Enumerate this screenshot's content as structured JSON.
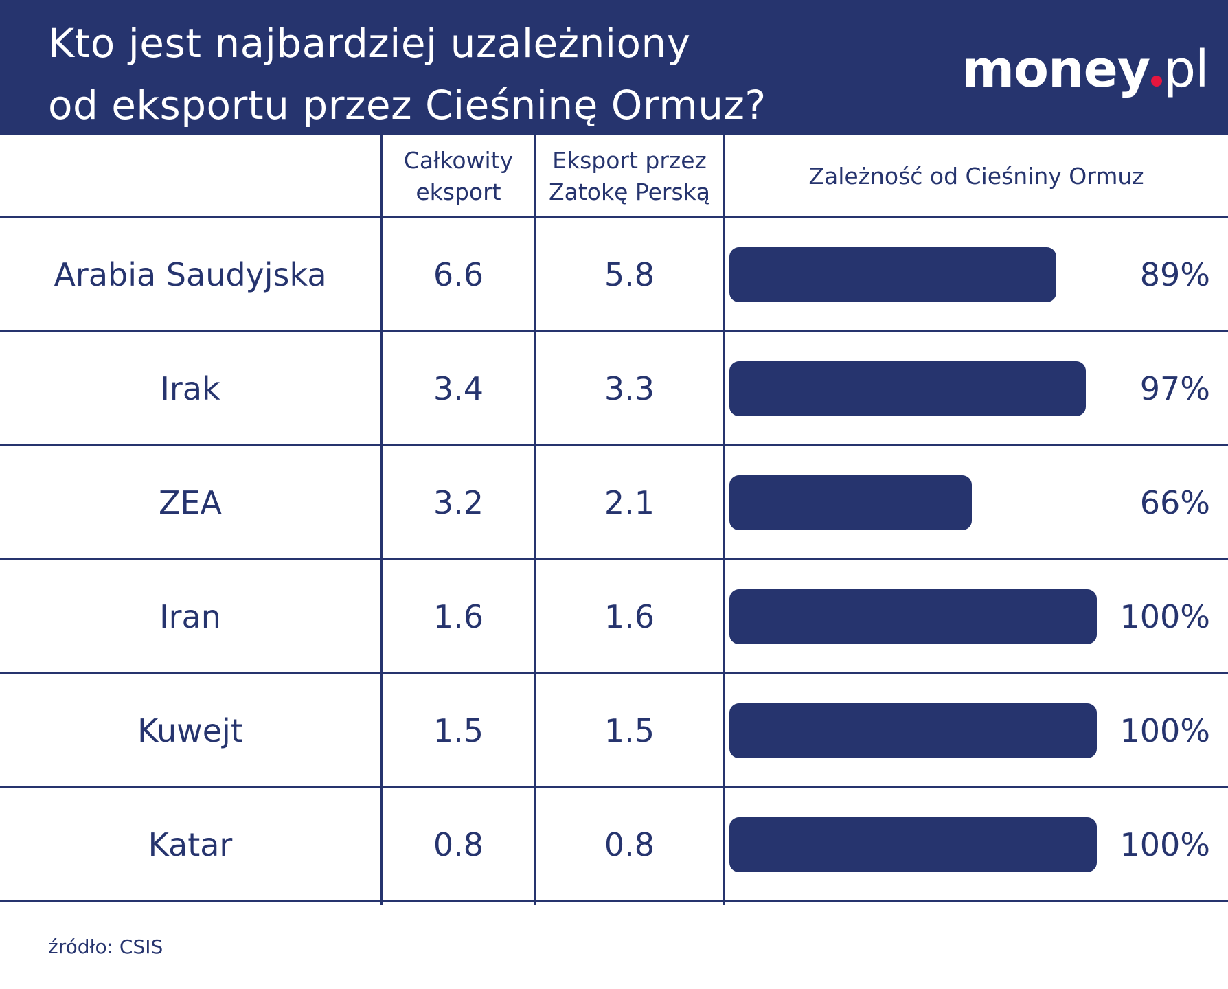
{
  "title_lines": [
    "Kto jest najbardziej uzależniony",
    "od eksportu przez Cieśninę Ormuz?"
  ],
  "logo": {
    "main": "money",
    "suffix": "pl",
    "colors": {
      "text": "#ffffff",
      "dot": "#e5163f"
    }
  },
  "colors": {
    "navy": "#26346e"
  },
  "chart_data": {
    "type": "table",
    "title": "Kto jest najbardziej uzależniony od eksportu przez Cieśninę Ormuz?",
    "columns": [
      "",
      "Całkowity eksport",
      "Eksport przez Zatokę Perską",
      "Zależność od Cieśniny Ormuz"
    ],
    "header": {
      "total_line1": "Całkowity",
      "total_line2": "eksport",
      "gulf_line1": "Eksport przez",
      "gulf_line2": "Zatokę Perską",
      "dependency": "Zależność od Cieśniny Ormuz"
    },
    "rows": [
      {
        "country": "Arabia Saudyjska",
        "total": "6.6",
        "gulf": "5.8",
        "dependency": 89,
        "dependency_label": "89%"
      },
      {
        "country": "Irak",
        "total": "3.4",
        "gulf": "3.3",
        "dependency": 97,
        "dependency_label": "97%"
      },
      {
        "country": "ZEA",
        "total": "3.2",
        "gulf": "2.1",
        "dependency": 66,
        "dependency_label": "66%"
      },
      {
        "country": "Iran",
        "total": "1.6",
        "gulf": "1.6",
        "dependency": 100,
        "dependency_label": "100%"
      },
      {
        "country": "Kuwejt",
        "total": "1.5",
        "gulf": "1.5",
        "dependency": 100,
        "dependency_label": "100%"
      },
      {
        "country": "Katar",
        "total": "0.8",
        "gulf": "0.8",
        "dependency": 100,
        "dependency_label": "100%"
      }
    ]
  },
  "source": "źródło: CSIS"
}
